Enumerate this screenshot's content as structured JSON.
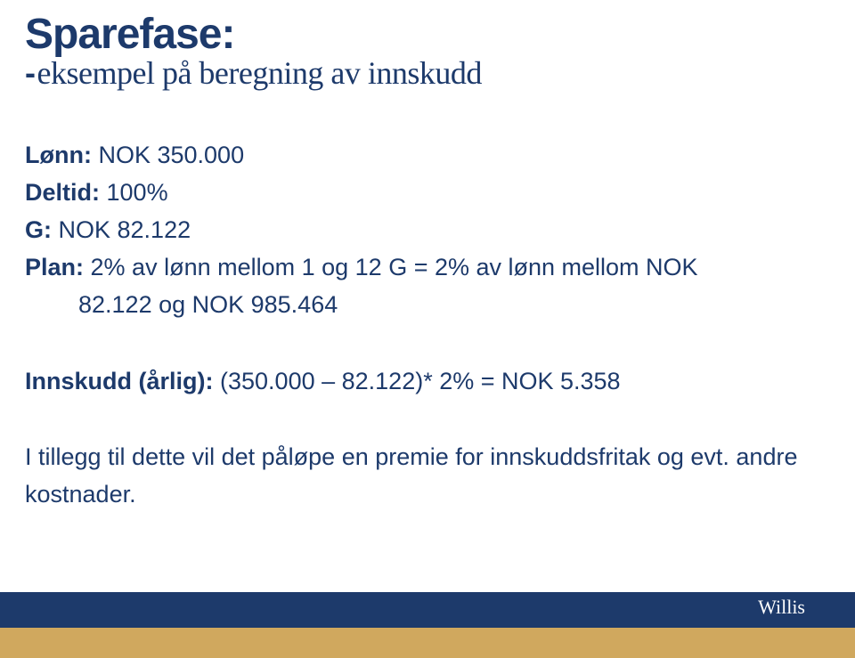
{
  "colors": {
    "title": "#1d3a6b",
    "subtitle": "#1d3a6b",
    "body": "#1d3a6b",
    "footer_front": "#1d3a6b",
    "footer_back": "#d0a85e",
    "brand_text": "#ffffff",
    "background": "#ffffff"
  },
  "typography": {
    "title_fontsize": 48,
    "subtitle_fontsize": 36,
    "body_fontsize": 27,
    "line_height": 1.55,
    "brand_fontsize": 22
  },
  "title": "Sparefase:",
  "subtitle_dash": "-",
  "subtitle": "eksempel på beregning av innskudd",
  "lines": {
    "lonn_label": "Lønn:",
    "lonn_value": "NOK 350.000",
    "deltid_label": "Deltid:",
    "deltid_value": "100%",
    "g_label": "G:",
    "g_value": "NOK 82.122",
    "plan_label": "Plan:",
    "plan_text": "2% av lønn mellom 1 og 12 G  = 2% av lønn mellom NOK",
    "plan_cont": "82.122 og NOK 985.464",
    "innskudd_label": "Innskudd (årlig):",
    "innskudd_value": "(350.000 – 82.122)* 2% = NOK 5.358",
    "footnote": "I tillegg til dette vil det påløpe en premie for innskuddsfritak og evt. andre kostnader."
  },
  "spacing": {
    "gap_after_plan": 44,
    "gap_after_innskudd": 44
  },
  "brand": "Willis"
}
